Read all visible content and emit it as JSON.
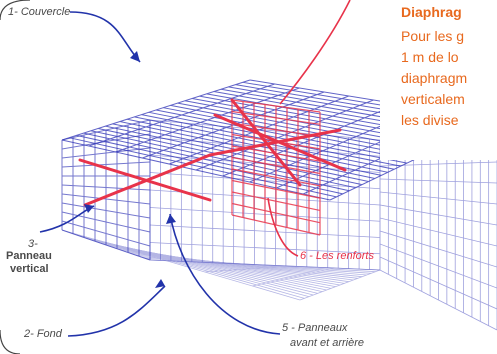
{
  "labels": {
    "couvercle": "1- Couvercle",
    "panneau_num": "3-",
    "panneau_1": "Panneau",
    "panneau_2": "vertical",
    "fond": "2- Fond",
    "renforts": "6 - Les renforts",
    "avant_1": "5 - Panneaux",
    "avant_2": "avant et arrière"
  },
  "note": {
    "heading": "Diaphrag",
    "lines": [
      "Pour les g",
      "1 m de lo",
      "diaphragm",
      "verticalem",
      "les divise"
    ]
  },
  "colors": {
    "mesh": "#2b2fb5",
    "reinforcement": "#e8334a",
    "arrow": "#2233aa",
    "note_text": "#e8691e"
  }
}
